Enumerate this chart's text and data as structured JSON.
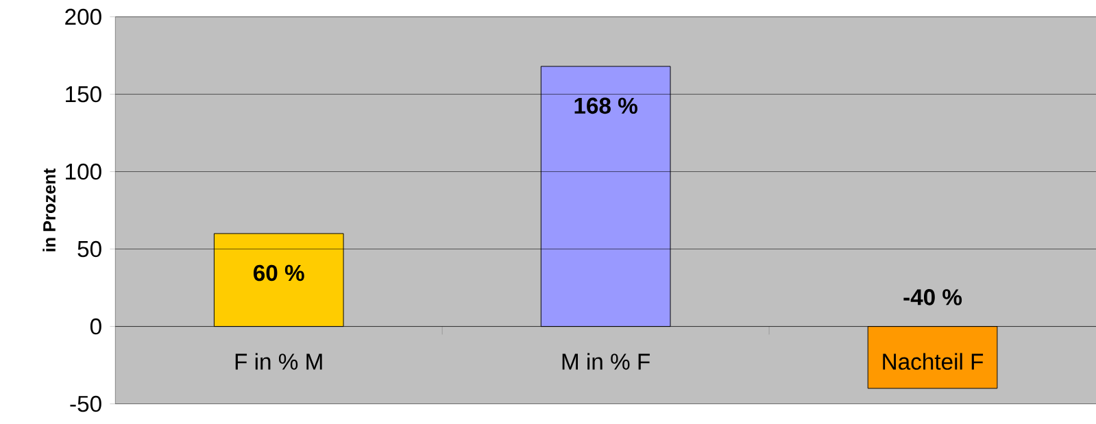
{
  "chart_data": {
    "type": "bar",
    "ylabel": "in Prozent",
    "categories": [
      "F in % M",
      "M in % F",
      "Nachteil F"
    ],
    "values": [
      60,
      168,
      -40
    ],
    "colors": [
      "#ffcc00",
      "#9999ff",
      "#ff9900"
    ],
    "value_labels": [
      "60 %",
      "168 %",
      "-40 %"
    ],
    "ylim": [
      -50,
      200
    ],
    "yticks": [
      -50,
      0,
      50,
      100,
      150,
      200
    ],
    "grid": "y"
  }
}
